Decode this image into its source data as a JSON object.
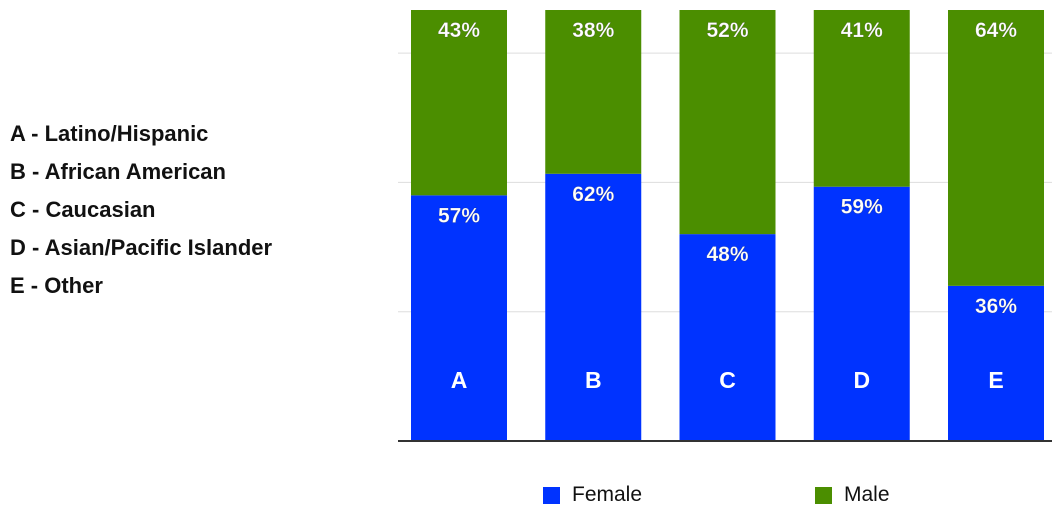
{
  "category_key": [
    "A - Latino/Hispanic",
    "B - African American",
    "C - Caucasian",
    "D - Asian/Pacific Islander",
    "E - Other"
  ],
  "colors": {
    "female": "#0033ff",
    "male": "#4b8e00"
  },
  "chart_data": {
    "type": "bar",
    "stacked": true,
    "categories": [
      "A",
      "B",
      "C",
      "D",
      "E"
    ],
    "series": [
      {
        "name": "Female",
        "values": [
          57,
          62,
          48,
          59,
          36
        ],
        "labels": [
          "57%",
          "62%",
          "48%",
          "59%",
          "36%"
        ],
        "color": "#0033ff"
      },
      {
        "name": "Male",
        "values": [
          43,
          38,
          52,
          41,
          64
        ],
        "labels": [
          "43%",
          "38%",
          "52%",
          "41%",
          "64%"
        ],
        "color": "#4b8e00"
      }
    ],
    "ylim": [
      0,
      100
    ],
    "grid": true,
    "legend": "bottom"
  }
}
